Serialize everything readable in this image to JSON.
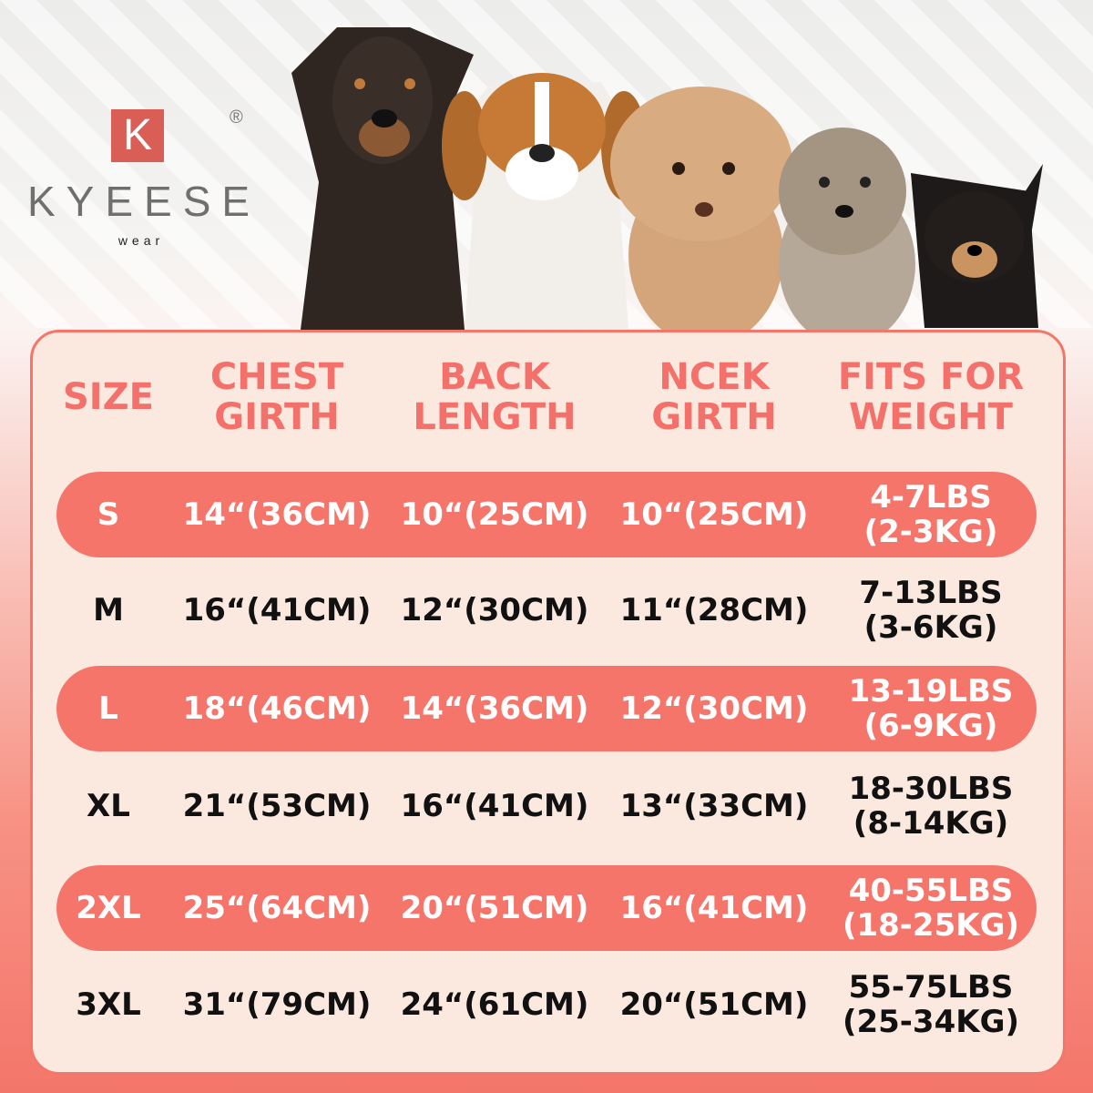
{
  "brand": {
    "logo_letter": "K",
    "name": "KYEESE",
    "sub": "wear",
    "registered": "®"
  },
  "colors": {
    "accent": "#f4756a",
    "panel": "#fbe8df",
    "logo": "#d95e55"
  },
  "dogs": [
    "doberman",
    "beagle",
    "poodle",
    "terrier",
    "chihuahua"
  ],
  "table": {
    "headers": [
      [
        "SIZE",
        ""
      ],
      [
        "CHEST",
        "GIRTH"
      ],
      [
        "BACK",
        "LENGTH"
      ],
      [
        "NCEK",
        "GIRTH"
      ],
      [
        "FITS FOR",
        "WEIGHT"
      ]
    ],
    "rows": [
      {
        "size": "S",
        "chest": "14“(36CM)",
        "back": "10“(25CM)",
        "neck": "10“(25CM)",
        "weight1": "4-7LBS",
        "weight2": "(2-3KG)",
        "highlight": true
      },
      {
        "size": "M",
        "chest": "16“(41CM)",
        "back": "12“(30CM)",
        "neck": "11“(28CM)",
        "weight1": "7-13LBS",
        "weight2": "(3-6KG)",
        "highlight": false
      },
      {
        "size": "L",
        "chest": "18“(46CM)",
        "back": "14“(36CM)",
        "neck": "12“(30CM)",
        "weight1": "13-19LBS",
        "weight2": "(6-9KG)",
        "highlight": true
      },
      {
        "size": "XL",
        "chest": "21“(53CM)",
        "back": "16“(41CM)",
        "neck": "13“(33CM)",
        "weight1": "18-30LBS",
        "weight2": "(8-14KG)",
        "highlight": false
      },
      {
        "size": "2XL",
        "chest": "25“(64CM)",
        "back": "20“(51CM)",
        "neck": "16“(41CM)",
        "weight1": "40-55LBS",
        "weight2": "(18-25KG)",
        "highlight": true
      },
      {
        "size": "3XL",
        "chest": "31“(79CM)",
        "back": "24“(61CM)",
        "neck": "20“(51CM)",
        "weight1": "55-75LBS",
        "weight2": "(25-34KG)",
        "highlight": false
      }
    ]
  }
}
